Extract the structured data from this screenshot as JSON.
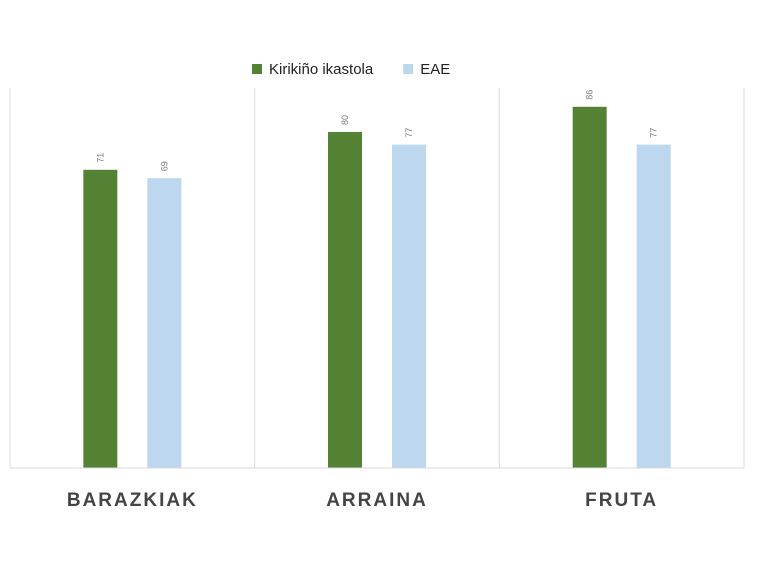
{
  "chart_data": {
    "type": "bar",
    "categories": [
      "BARAZKIAK",
      "ARRAINA",
      "FRUTA"
    ],
    "series": [
      {
        "name": "Kirikiño ikastola",
        "values": [
          71,
          80,
          86
        ],
        "color": "#548235"
      },
      {
        "name": "EAE",
        "values": [
          69,
          77,
          77
        ],
        "color": "#bdd7ee"
      }
    ],
    "ylim": [
      0,
      100
    ],
    "data_labels": true,
    "data_label_rotation": "vertical",
    "grid": "vertical category separators",
    "legend_position": "top-center"
  }
}
